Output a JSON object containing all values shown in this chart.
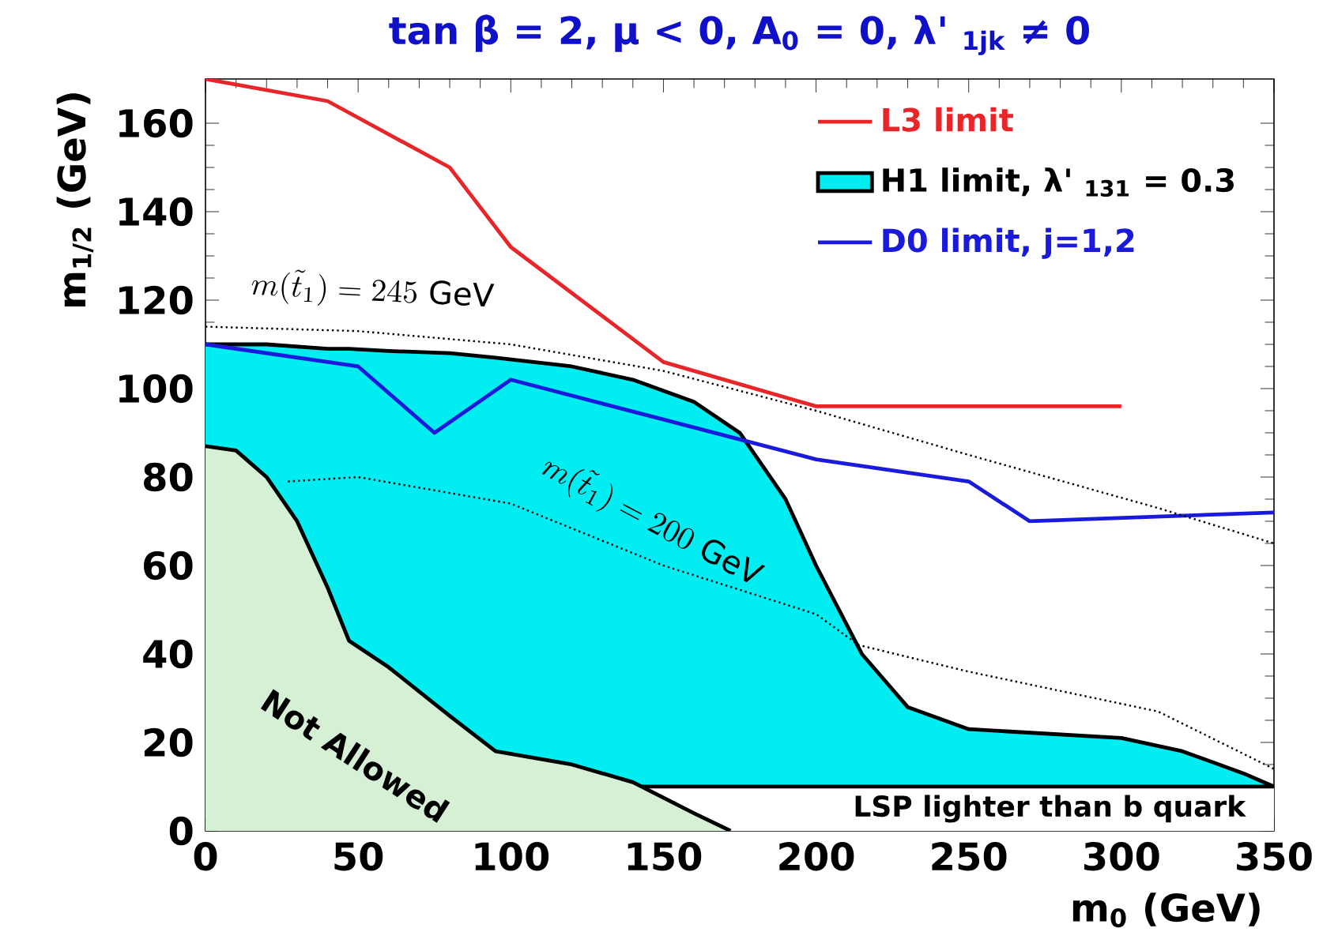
{
  "chart_data": {
    "type": "line",
    "title": "tan β = 2, μ < 0, A$_{0}$ = 0, λ' $_{1jk}$ ≠ 0",
    "xlabel": "m$_{0}$ (GeV)",
    "ylabel": "m$_{1/2}$ (GeV)",
    "xlim": [
      0,
      350
    ],
    "ylim": [
      0,
      170
    ],
    "xticks": [
      0,
      50,
      100,
      150,
      200,
      250,
      300,
      350
    ],
    "yticks": [
      0,
      20,
      40,
      60,
      80,
      100,
      120,
      140,
      160
    ],
    "legend": "top right",
    "marker": "none",
    "bands": [
      {
        "axis": "y",
        "from": 0,
        "to": 10,
        "label": "LSP lighter than b quark"
      }
    ],
    "annotations": [
      {
        "text": "m(\\tilde{t}_{1}) = 245\\ \\mathrm{GeV}",
        "x": 54,
        "y": 113
      },
      {
        "text": "m(\\tilde{t}_{1}) = 200\\ \\mathrm{GeV}",
        "x": 140,
        "y": 62
      },
      "Not Allowed"
    ],
    "series": [
      {
        "name": "L3 limit",
        "color": "#e8262a",
        "x": [
          0,
          40,
          80,
          100,
          150,
          200,
          300
        ],
        "values": [
          170,
          165,
          150,
          132,
          106,
          96,
          96
        ]
      },
      {
        "name": "H1 limit, λ' $_{131}$ = 0.3",
        "type": "area",
        "color": "#00eef2",
        "x": [
          0,
          20,
          40,
          47,
          60,
          80,
          95,
          120,
          140,
          160,
          175,
          190,
          200,
          215,
          230,
          250,
          300,
          320,
          340,
          350
        ],
        "values": [
          110,
          110,
          109,
          109,
          108.5,
          108,
          107,
          105,
          102,
          97,
          90,
          75,
          60,
          40,
          28,
          23,
          21,
          18,
          13,
          10
        ]
      },
      {
        "name": "D0 limit, j=1,2",
        "color": "#1a1adc",
        "x": [
          0,
          50,
          75,
          100,
          150,
          200,
          250,
          270,
          350
        ],
        "values": [
          110,
          105,
          90,
          102,
          93,
          84,
          79,
          70,
          72
        ]
      },
      {
        "type": "area",
        "color": "#d6f0d6",
        "x": [
          0,
          10,
          20,
          30,
          40,
          47,
          60,
          80,
          95,
          120,
          140,
          160,
          172
        ],
        "values": [
          87,
          86,
          80,
          70,
          55,
          43,
          37,
          26,
          18,
          15,
          11,
          4,
          0
        ]
      },
      {
        "color": "#000000",
        "line_style": "dotted",
        "x": [
          0,
          50,
          100,
          150,
          200,
          250,
          312,
          350
        ],
        "values": [
          114,
          113,
          110,
          104,
          95,
          85,
          73,
          65
        ]
      },
      {
        "color": "#000000",
        "line_style": "dotted",
        "x": [
          27,
          50,
          100,
          150,
          200,
          214,
          250,
          312,
          350
        ],
        "values": [
          79,
          80,
          74,
          60,
          49,
          42,
          36,
          27,
          14
        ]
      }
    ]
  }
}
